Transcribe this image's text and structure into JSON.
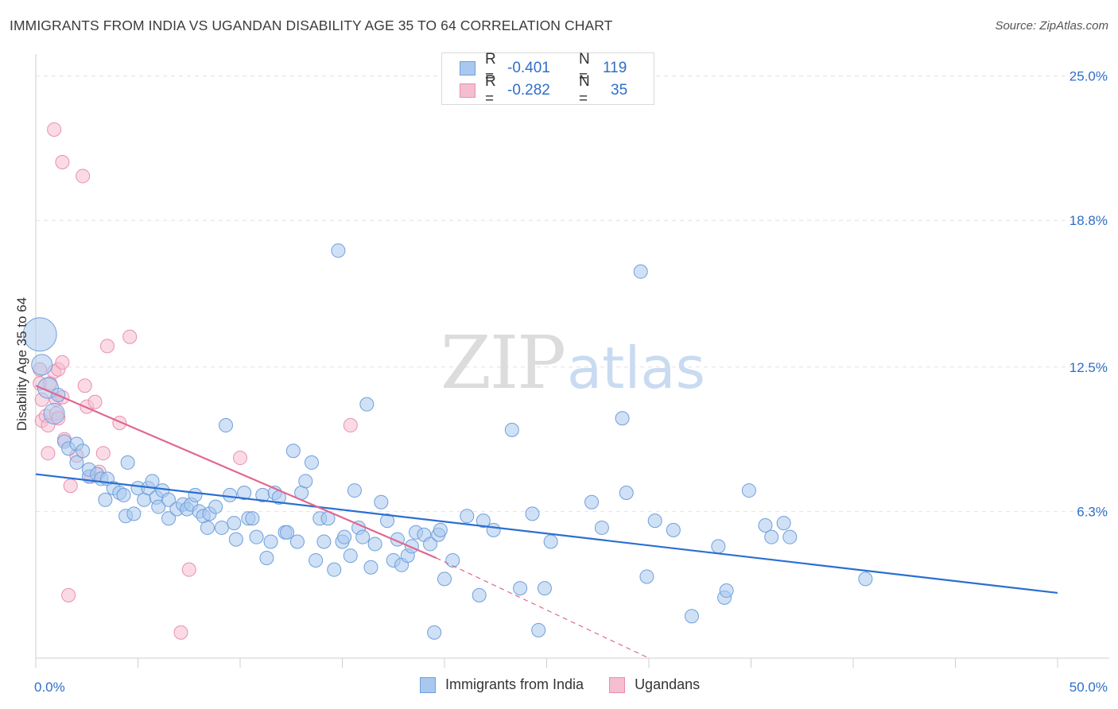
{
  "title": "IMMIGRANTS FROM INDIA VS UGANDAN DISABILITY AGE 35 TO 64 CORRELATION CHART",
  "source": "Source: ZipAtlas.com",
  "colors": {
    "blue_fill": "#a9c8ef",
    "blue_stroke": "#6f9fdc",
    "blue_line": "#2a6fd1",
    "pink_fill": "#f5bdd0",
    "pink_stroke": "#e88fb0",
    "pink_line": "#e0678f",
    "grid": "#e2e2e2",
    "axis_label": "#2f6fc9"
  },
  "legend_top": {
    "rows": [
      {
        "label": "R =",
        "r": "-0.401",
        "n_label": "N =",
        "n": "119",
        "series": "india"
      },
      {
        "label": "R =",
        "r": "-0.282",
        "n_label": "N =",
        "n": "35",
        "series": "ugandans"
      }
    ]
  },
  "legend_bottom": [
    "Immigrants from India",
    "Ugandans"
  ],
  "watermark": {
    "zip": "ZIP",
    "atlas": "atlas"
  },
  "chart_data": {
    "type": "scatter",
    "title": "IMMIGRANTS FROM INDIA VS UGANDAN DISABILITY AGE 35 TO 64 CORRELATION CHART",
    "xlabel": "",
    "ylabel": "Disability Age 35 to 64",
    "xlim": [
      0,
      50
    ],
    "ylim": [
      0,
      25.6
    ],
    "x_tick_labels": [
      "0.0%",
      "50.0%"
    ],
    "y_ticks": [
      6.3,
      12.5,
      18.8,
      25.0
    ],
    "y_tick_labels": [
      "6.3%",
      "12.5%",
      "18.8%",
      "25.0%"
    ],
    "legend_position": "top-center",
    "series": [
      {
        "name": "Immigrants from India",
        "R": -0.401,
        "N": 119,
        "trend": {
          "x": [
            0,
            50
          ],
          "y": [
            7.9,
            2.8
          ]
        },
        "points": [
          {
            "x": 0.2,
            "y": 13.9,
            "s": 3
          },
          {
            "x": 0.3,
            "y": 12.6,
            "s": 2
          },
          {
            "x": 0.6,
            "y": 11.6,
            "s": 2
          },
          {
            "x": 0.9,
            "y": 10.5,
            "s": 2
          },
          {
            "x": 1.1,
            "y": 11.3
          },
          {
            "x": 1.4,
            "y": 9.3
          },
          {
            "x": 1.6,
            "y": 9.0
          },
          {
            "x": 2.0,
            "y": 9.2
          },
          {
            "x": 2.0,
            "y": 8.4
          },
          {
            "x": 2.3,
            "y": 8.9
          },
          {
            "x": 2.6,
            "y": 7.8
          },
          {
            "x": 2.6,
            "y": 8.1
          },
          {
            "x": 3.0,
            "y": 7.9
          },
          {
            "x": 3.2,
            "y": 7.7
          },
          {
            "x": 3.5,
            "y": 7.7
          },
          {
            "x": 3.4,
            "y": 6.8
          },
          {
            "x": 3.8,
            "y": 7.3
          },
          {
            "x": 4.1,
            "y": 7.1
          },
          {
            "x": 4.3,
            "y": 7.0
          },
          {
            "x": 4.4,
            "y": 6.1
          },
          {
            "x": 4.5,
            "y": 8.4
          },
          {
            "x": 4.8,
            "y": 6.2
          },
          {
            "x": 5.0,
            "y": 7.3
          },
          {
            "x": 5.3,
            "y": 6.8
          },
          {
            "x": 5.5,
            "y": 7.3
          },
          {
            "x": 5.7,
            "y": 7.6
          },
          {
            "x": 5.9,
            "y": 6.9
          },
          {
            "x": 6.0,
            "y": 6.5
          },
          {
            "x": 6.2,
            "y": 7.2
          },
          {
            "x": 6.5,
            "y": 6.8
          },
          {
            "x": 6.5,
            "y": 6.0
          },
          {
            "x": 6.9,
            "y": 6.4
          },
          {
            "x": 7.2,
            "y": 6.6
          },
          {
            "x": 7.4,
            "y": 6.4
          },
          {
            "x": 7.6,
            "y": 6.6
          },
          {
            "x": 7.8,
            "y": 7.0
          },
          {
            "x": 8.0,
            "y": 6.3
          },
          {
            "x": 8.2,
            "y": 6.1
          },
          {
            "x": 8.4,
            "y": 5.6
          },
          {
            "x": 8.5,
            "y": 6.2
          },
          {
            "x": 8.8,
            "y": 6.5
          },
          {
            "x": 9.1,
            "y": 5.6
          },
          {
            "x": 9.3,
            "y": 10.0
          },
          {
            "x": 9.5,
            "y": 7.0
          },
          {
            "x": 9.7,
            "y": 5.8
          },
          {
            "x": 9.8,
            "y": 5.1
          },
          {
            "x": 10.2,
            "y": 7.1
          },
          {
            "x": 10.4,
            "y": 6.0
          },
          {
            "x": 10.6,
            "y": 6.0
          },
          {
            "x": 10.8,
            "y": 5.2
          },
          {
            "x": 11.1,
            "y": 7.0
          },
          {
            "x": 11.3,
            "y": 4.3
          },
          {
            "x": 11.5,
            "y": 5.0
          },
          {
            "x": 11.7,
            "y": 7.1
          },
          {
            "x": 11.9,
            "y": 6.9
          },
          {
            "x": 12.2,
            "y": 5.4
          },
          {
            "x": 12.3,
            "y": 5.4
          },
          {
            "x": 12.6,
            "y": 8.9
          },
          {
            "x": 12.8,
            "y": 5.0
          },
          {
            "x": 13.0,
            "y": 7.1
          },
          {
            "x": 13.2,
            "y": 7.6
          },
          {
            "x": 13.5,
            "y": 8.4
          },
          {
            "x": 13.7,
            "y": 4.2
          },
          {
            "x": 13.9,
            "y": 6.0
          },
          {
            "x": 14.1,
            "y": 5.0
          },
          {
            "x": 14.3,
            "y": 6.0
          },
          {
            "x": 14.6,
            "y": 3.8
          },
          {
            "x": 14.8,
            "y": 17.5
          },
          {
            "x": 15.0,
            "y": 5.0
          },
          {
            "x": 15.1,
            "y": 5.2
          },
          {
            "x": 15.4,
            "y": 4.4
          },
          {
            "x": 15.6,
            "y": 7.2
          },
          {
            "x": 15.8,
            "y": 5.6
          },
          {
            "x": 16.0,
            "y": 5.2
          },
          {
            "x": 16.2,
            "y": 10.9
          },
          {
            "x": 16.4,
            "y": 3.9
          },
          {
            "x": 16.6,
            "y": 4.9
          },
          {
            "x": 16.9,
            "y": 6.7
          },
          {
            "x": 17.2,
            "y": 5.9
          },
          {
            "x": 17.5,
            "y": 4.2
          },
          {
            "x": 17.7,
            "y": 5.1
          },
          {
            "x": 17.9,
            "y": 4.0
          },
          {
            "x": 18.2,
            "y": 4.4
          },
          {
            "x": 18.4,
            "y": 4.8
          },
          {
            "x": 18.6,
            "y": 5.4
          },
          {
            "x": 19.0,
            "y": 5.3
          },
          {
            "x": 19.3,
            "y": 4.9
          },
          {
            "x": 19.5,
            "y": 1.1
          },
          {
            "x": 19.7,
            "y": 5.3
          },
          {
            "x": 19.8,
            "y": 5.5
          },
          {
            "x": 20.0,
            "y": 3.4
          },
          {
            "x": 20.4,
            "y": 4.2
          },
          {
            "x": 21.1,
            "y": 6.1
          },
          {
            "x": 21.7,
            "y": 2.7
          },
          {
            "x": 21.9,
            "y": 5.9
          },
          {
            "x": 22.4,
            "y": 5.5
          },
          {
            "x": 23.3,
            "y": 9.8
          },
          {
            "x": 23.7,
            "y": 3.0
          },
          {
            "x": 24.3,
            "y": 6.2
          },
          {
            "x": 24.6,
            "y": 1.2
          },
          {
            "x": 24.9,
            "y": 3.0
          },
          {
            "x": 25.2,
            "y": 5.0
          },
          {
            "x": 27.2,
            "y": 6.7
          },
          {
            "x": 27.7,
            "y": 5.6
          },
          {
            "x": 28.7,
            "y": 10.3
          },
          {
            "x": 28.9,
            "y": 7.1
          },
          {
            "x": 29.6,
            "y": 16.6
          },
          {
            "x": 29.9,
            "y": 3.5
          },
          {
            "x": 30.3,
            "y": 5.9
          },
          {
            "x": 31.2,
            "y": 5.5
          },
          {
            "x": 32.1,
            "y": 1.8
          },
          {
            "x": 33.4,
            "y": 4.8
          },
          {
            "x": 33.7,
            "y": 2.6
          },
          {
            "x": 33.8,
            "y": 2.9
          },
          {
            "x": 34.9,
            "y": 7.2
          },
          {
            "x": 35.7,
            "y": 5.7
          },
          {
            "x": 36.0,
            "y": 5.2
          },
          {
            "x": 36.6,
            "y": 5.8
          },
          {
            "x": 36.9,
            "y": 5.2
          },
          {
            "x": 40.6,
            "y": 3.4
          }
        ]
      },
      {
        "name": "Ugandans",
        "R": -0.282,
        "N": 35,
        "trend": {
          "x": [
            0,
            19.6
          ],
          "y": [
            11.7,
            4.3
          ]
        },
        "trend_dashed": {
          "x": [
            19.6,
            30.0
          ],
          "y": [
            4.3,
            0.0
          ]
        },
        "points": [
          {
            "x": 0.2,
            "y": 12.4
          },
          {
            "x": 0.2,
            "y": 11.8
          },
          {
            "x": 0.3,
            "y": 11.1
          },
          {
            "x": 0.3,
            "y": 10.2
          },
          {
            "x": 0.5,
            "y": 10.4
          },
          {
            "x": 0.6,
            "y": 10.0
          },
          {
            "x": 0.7,
            "y": 11.8
          },
          {
            "x": 0.6,
            "y": 8.8
          },
          {
            "x": 0.9,
            "y": 12.3
          },
          {
            "x": 1.0,
            "y": 10.5
          },
          {
            "x": 1.0,
            "y": 11.1
          },
          {
            "x": 1.1,
            "y": 10.3
          },
          {
            "x": 1.1,
            "y": 12.4
          },
          {
            "x": 1.3,
            "y": 11.2
          },
          {
            "x": 1.3,
            "y": 12.7
          },
          {
            "x": 0.9,
            "y": 22.7
          },
          {
            "x": 1.3,
            "y": 21.3
          },
          {
            "x": 1.4,
            "y": 9.4
          },
          {
            "x": 1.7,
            "y": 7.4
          },
          {
            "x": 1.6,
            "y": 2.7
          },
          {
            "x": 2.0,
            "y": 8.7
          },
          {
            "x": 2.3,
            "y": 20.7
          },
          {
            "x": 2.4,
            "y": 11.7
          },
          {
            "x": 2.5,
            "y": 10.8
          },
          {
            "x": 2.7,
            "y": 7.8
          },
          {
            "x": 2.9,
            "y": 11.0
          },
          {
            "x": 3.1,
            "y": 8.0
          },
          {
            "x": 3.3,
            "y": 8.8
          },
          {
            "x": 3.5,
            "y": 13.4
          },
          {
            "x": 4.1,
            "y": 10.1
          },
          {
            "x": 4.6,
            "y": 13.8
          },
          {
            "x": 7.1,
            "y": 1.1
          },
          {
            "x": 7.5,
            "y": 3.8
          },
          {
            "x": 10.0,
            "y": 8.6
          },
          {
            "x": 15.4,
            "y": 10.0
          }
        ]
      }
    ]
  }
}
